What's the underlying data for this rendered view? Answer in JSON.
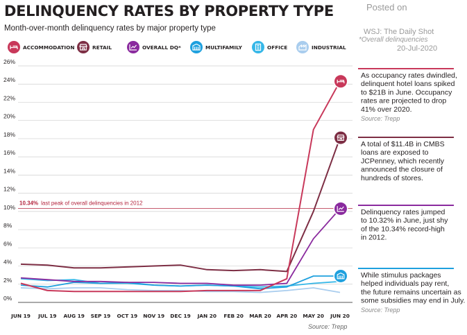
{
  "header": {
    "title": "DELINQUENCY RATES BY PROPERTY TYPE",
    "subtitle": "Month-over-month delinquency rates by major property type"
  },
  "watermark": {
    "posted": "Posted on",
    "source": "WSJ: The Daily Shot",
    "note": "*Overall delinquencies",
    "date": "20-Jul-2020"
  },
  "legend": [
    {
      "label": "ACCOMMODATION",
      "color": "#c8385a",
      "icon": "hotel-bed-icon"
    },
    {
      "label": "RETAIL",
      "color": "#7d2e44",
      "icon": "storefront-icon"
    },
    {
      "label": "OVERALL DQ*",
      "color": "#8a2a9e",
      "icon": "chart-icon"
    },
    {
      "label": "MULTIFAMILY",
      "color": "#1ea0de",
      "icon": "apartment-icon"
    },
    {
      "label": "OFFICE",
      "color": "#35b7e8",
      "icon": "office-building-icon"
    },
    {
      "label": "INDUSTRIAL",
      "color": "#a9cdee",
      "icon": "factory-icon"
    }
  ],
  "reference_line": {
    "value": 10.34,
    "strong": "10.34%",
    "text": "last peak of overall delinquencies in 2012",
    "color": "#b3243d"
  },
  "source": "Source: Trepp",
  "annotations": [
    {
      "series": "ACCOMMODATION",
      "color": "#c8385a",
      "lines": [
        "As occupancy rates dwindled,",
        "delinquent hotel loans spiked",
        "to $21B in June. Occupancy",
        "rates are projected to drop",
        "41% over 2020."
      ],
      "source": "Source: Trepp"
    },
    {
      "series": "RETAIL",
      "color": "#7d2e44",
      "lines": [
        "A total of $11.4B in CMBS",
        "loans are exposed to",
        "JCPenney, which recently",
        "announced the closure of",
        "hundreds of stores."
      ],
      "source": ""
    },
    {
      "series": "OVERALL DQ*",
      "color": "#8a2a9e",
      "lines": [
        "Delinquency rates jumped",
        "to 10.32% in June, just shy",
        "of the 10.34% record-high",
        "in 2012."
      ],
      "source": ""
    },
    {
      "series": "MULTIFAMILY",
      "color": "#1ea0de",
      "lines": [
        "While stimulus packages",
        "helped individuals pay rent,",
        "the future remains uncertain as",
        "some subsidies may end in July."
      ],
      "source": "Source: Trepp"
    }
  ],
  "chart_data": {
    "type": "line",
    "title": "DELINQUENCY RATES BY PROPERTY TYPE",
    "subtitle": "Month-over-month delinquency rates by major property type",
    "ylim": [
      0,
      26
    ],
    "yticks": [
      "0%",
      "2%",
      "4%",
      "6%",
      "8%",
      "10%",
      "12%",
      "14%",
      "16%",
      "18%",
      "20%",
      "22%",
      "24%",
      "26%"
    ],
    "grid": true,
    "legend_position": "top",
    "categories": [
      "JUN 19",
      "JUL 19",
      "AUG 19",
      "SEP 19",
      "OCT 19",
      "NOV 19",
      "DEC 19",
      "JAN 20",
      "FEB 20",
      "MAR 20",
      "APR 20",
      "MAY 20",
      "JUN 20"
    ],
    "series": [
      {
        "name": "INDUSTRIAL",
        "color": "#a9cdee",
        "width": 1.8,
        "values": [
          1.6,
          1.5,
          1.6,
          1.6,
          1.4,
          1.3,
          1.3,
          1.2,
          1.2,
          1.1,
          1.3,
          1.6,
          1.1
        ]
      },
      {
        "name": "OFFICE",
        "color": "#35b7e8",
        "width": 1.8,
        "values": [
          2.6,
          2.4,
          2.5,
          2.1,
          2.1,
          1.9,
          1.8,
          1.9,
          1.8,
          1.7,
          1.8,
          2.1,
          2.3
        ]
      },
      {
        "name": "MULTIFAMILY",
        "color": "#1ea0de",
        "width": 1.8,
        "values": [
          1.9,
          1.7,
          2.2,
          2.1,
          2.2,
          1.9,
          1.8,
          1.9,
          1.8,
          1.5,
          1.7,
          2.9,
          2.9
        ]
      },
      {
        "name": "OVERALL DQ*",
        "color": "#8a2a9e",
        "width": 1.8,
        "values": [
          2.7,
          2.5,
          2.3,
          2.3,
          2.2,
          2.2,
          2.1,
          2.1,
          1.9,
          1.9,
          2.1,
          7.0,
          10.3
        ]
      },
      {
        "name": "RETAIL",
        "color": "#7d2e44",
        "width": 2.0,
        "values": [
          4.2,
          4.1,
          3.8,
          3.8,
          3.9,
          4.0,
          4.1,
          3.6,
          3.5,
          3.6,
          3.4,
          10.0,
          18.1
        ]
      },
      {
        "name": "ACCOMMODATION",
        "color": "#c8385a",
        "width": 2.0,
        "values": [
          2.1,
          1.3,
          1.2,
          1.2,
          1.2,
          1.2,
          1.2,
          1.3,
          1.3,
          1.3,
          2.6,
          19.0,
          24.3
        ]
      }
    ],
    "end_markers": [
      {
        "series": "ACCOMMODATION",
        "value": 24.3,
        "icon": "hotel-bed-icon"
      },
      {
        "series": "RETAIL",
        "value": 18.1,
        "icon": "storefront-icon"
      },
      {
        "series": "OVERALL DQ*",
        "value": 10.3,
        "icon": "chart-icon"
      },
      {
        "series": "MULTIFAMILY",
        "value": 2.9,
        "icon": "apartment-icon"
      }
    ]
  }
}
